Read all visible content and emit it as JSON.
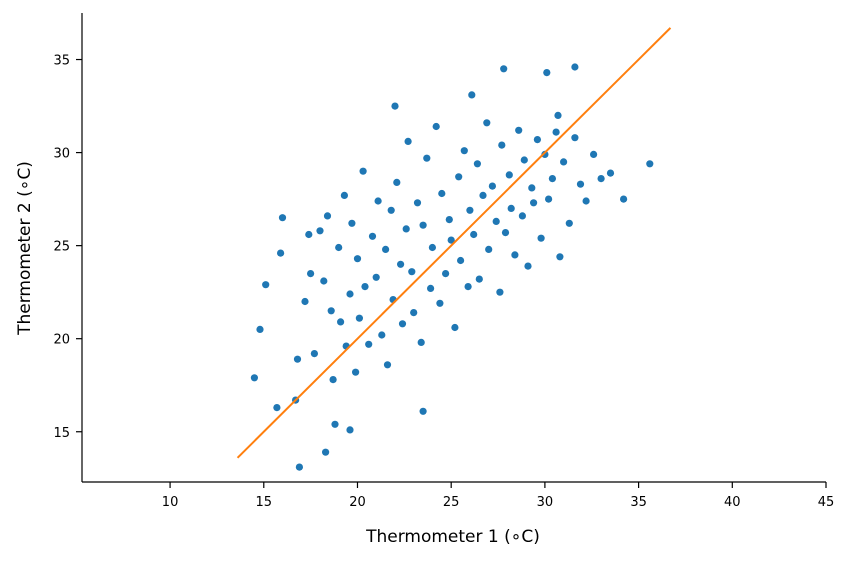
{
  "chart_data": {
    "type": "scatter",
    "title": "",
    "xlabel": "Thermometer 1 (∘C)",
    "ylabel": "Thermometer 2 (∘C)",
    "xlim": [
      5.3,
      45
    ],
    "ylim": [
      12.3,
      37.5
    ],
    "xticks": [
      10,
      15,
      20,
      25,
      30,
      35,
      40,
      45
    ],
    "yticks": [
      15,
      20,
      25,
      30,
      35
    ],
    "grid": false,
    "series": [
      {
        "kind": "scatter",
        "color": "#1f77b4",
        "x": [
          14.5,
          14.8,
          15.1,
          15.7,
          15.9,
          16.0,
          16.7,
          16.8,
          16.9,
          17.2,
          17.4,
          17.5,
          17.7,
          18.0,
          18.2,
          18.3,
          18.4,
          18.6,
          18.7,
          18.8,
          19.0,
          19.1,
          19.3,
          19.4,
          19.6,
          19.7,
          19.9,
          20.0,
          20.1,
          20.3,
          20.4,
          20.6,
          20.8,
          21.0,
          21.1,
          21.3,
          21.5,
          21.6,
          21.8,
          21.9,
          22.1,
          22.3,
          22.4,
          22.6,
          22.7,
          22.9,
          23.0,
          23.2,
          23.4,
          23.5,
          23.7,
          23.9,
          24.0,
          24.2,
          24.4,
          24.5,
          24.7,
          24.9,
          25.0,
          25.2,
          25.4,
          25.5,
          25.7,
          25.9,
          26.0,
          26.2,
          26.4,
          26.5,
          26.7,
          26.9,
          27.0,
          27.2,
          27.4,
          27.6,
          27.7,
          27.9,
          28.1,
          28.2,
          28.4,
          28.6,
          28.8,
          28.9,
          29.1,
          29.3,
          29.4,
          29.6,
          29.8,
          30.0,
          30.2,
          30.4,
          30.6,
          30.8,
          31.0,
          31.3,
          31.6,
          31.9,
          32.2,
          32.6,
          33.0,
          33.5,
          34.2,
          35.6,
          27.8,
          26.1,
          30.1,
          30.7,
          31.6,
          22.0,
          23.5,
          19.6
        ],
        "y": [
          17.9,
          20.5,
          22.9,
          16.3,
          24.6,
          26.5,
          16.7,
          18.9,
          13.1,
          22.0,
          25.6,
          23.5,
          19.2,
          25.8,
          23.1,
          13.9,
          26.6,
          21.5,
          17.8,
          15.4,
          24.9,
          20.9,
          27.7,
          19.6,
          22.4,
          26.2,
          18.2,
          24.3,
          21.1,
          29.0,
          22.8,
          19.7,
          25.5,
          23.3,
          27.4,
          20.2,
          24.8,
          18.6,
          26.9,
          22.1,
          28.4,
          24.0,
          20.8,
          25.9,
          30.6,
          23.6,
          21.4,
          27.3,
          19.8,
          26.1,
          29.7,
          22.7,
          24.9,
          31.4,
          21.9,
          27.8,
          23.5,
          26.4,
          25.3,
          20.6,
          28.7,
          24.2,
          30.1,
          22.8,
          26.9,
          25.6,
          29.4,
          23.2,
          27.7,
          31.6,
          24.8,
          28.2,
          26.3,
          22.5,
          30.4,
          25.7,
          28.8,
          27.0,
          24.5,
          31.2,
          26.6,
          29.6,
          23.9,
          28.1,
          27.3,
          30.7,
          25.4,
          29.9,
          27.5,
          28.6,
          31.1,
          24.4,
          29.5,
          26.2,
          30.8,
          28.3,
          27.4,
          29.9,
          28.6,
          28.9,
          27.5,
          29.4,
          34.5,
          33.1,
          34.3,
          32.0,
          34.6,
          32.5,
          16.1,
          15.1
        ]
      },
      {
        "kind": "line",
        "color": "#ff7f0e",
        "x": [
          13.6,
          36.7
        ],
        "y": [
          13.6,
          36.7
        ]
      }
    ]
  }
}
